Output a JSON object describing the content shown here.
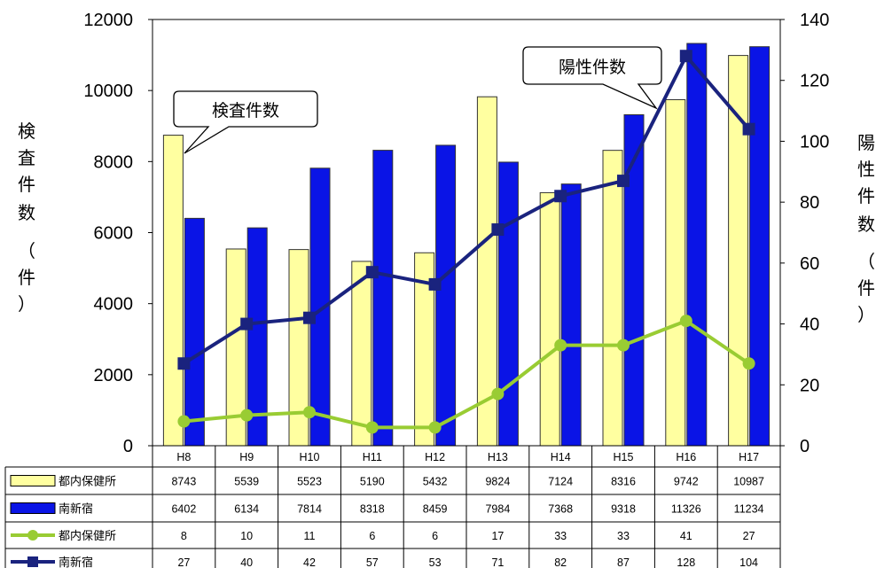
{
  "chart_data": {
    "type": "bar",
    "categories": [
      "H8",
      "H9",
      "H10",
      "H11",
      "H12",
      "H13",
      "H14",
      "H15",
      "H16",
      "H17"
    ],
    "left_axis": {
      "label_chars": [
        "検",
        "査",
        "件",
        "数",
        "（",
        "件",
        "）"
      ],
      "ylim": [
        0,
        12000
      ],
      "ticks": [
        "0",
        "2000",
        "4000",
        "6000",
        "8000",
        "10000",
        "12000"
      ]
    },
    "right_axis": {
      "label_chars": [
        "陽",
        "性",
        "件",
        "数",
        "（",
        "件",
        "）"
      ],
      "ylim": [
        0,
        140
      ],
      "ticks": [
        "0",
        "20",
        "40",
        "60",
        "80",
        "100",
        "120",
        "140"
      ]
    },
    "callouts": {
      "tests": "検査件数",
      "positive": "陽性件数"
    },
    "series": [
      {
        "name": "都内保健所",
        "type": "bar",
        "axis": "left",
        "color": "#ffffa0",
        "values": [
          8743,
          5539,
          5523,
          5190,
          5432,
          9824,
          7124,
          8316,
          9742,
          10987
        ]
      },
      {
        "name": "南新宿",
        "type": "bar",
        "axis": "left",
        "color": "#0a14e6",
        "values": [
          6402,
          6134,
          7814,
          8318,
          8459,
          7984,
          7368,
          9318,
          11326,
          11234
        ]
      },
      {
        "name": "都内保健所",
        "type": "line",
        "axis": "right",
        "color": "#99cc33",
        "values": [
          8,
          10,
          11,
          6,
          6,
          17,
          33,
          33,
          41,
          27
        ]
      },
      {
        "name": "南新宿",
        "type": "line",
        "axis": "right",
        "color": "#1a237e",
        "values": [
          27,
          40,
          42,
          57,
          53,
          71,
          82,
          87,
          128,
          104
        ]
      }
    ],
    "grid": false,
    "legend": "data-table-below"
  }
}
